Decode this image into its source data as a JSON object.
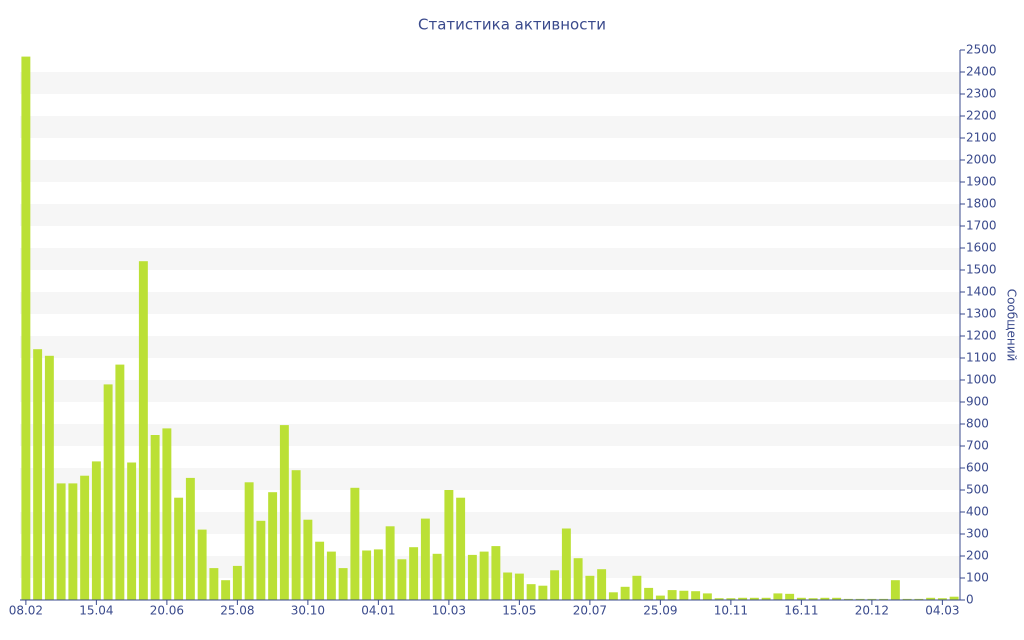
{
  "chart_data": {
    "type": "bar",
    "title": "Статистика активности",
    "y_label": "Сообщений",
    "categories": [
      "08.02",
      null,
      null,
      null,
      null,
      null,
      "15.04",
      null,
      null,
      null,
      null,
      null,
      "20.06",
      null,
      null,
      null,
      null,
      null,
      "25.08",
      null,
      null,
      null,
      null,
      null,
      "30.10",
      null,
      null,
      null,
      null,
      null,
      "04.01",
      null,
      null,
      null,
      null,
      null,
      "10.03",
      null,
      null,
      null,
      null,
      null,
      "15.05",
      null,
      null,
      null,
      null,
      null,
      "20.07",
      null,
      null,
      null,
      null,
      null,
      "25.09",
      null,
      null,
      null,
      null,
      null,
      "10.11",
      null,
      null,
      null,
      null,
      null,
      "16.11",
      null,
      null,
      null,
      null,
      null,
      "20.12",
      null,
      null,
      null,
      null,
      null,
      "04.03",
      null
    ],
    "values": [
      2470,
      1140,
      1110,
      530,
      530,
      565,
      630,
      980,
      1070,
      625,
      1540,
      750,
      780,
      465,
      555,
      320,
      145,
      90,
      155,
      535,
      360,
      490,
      795,
      590,
      365,
      265,
      220,
      145,
      510,
      225,
      230,
      335,
      185,
      240,
      370,
      210,
      500,
      465,
      205,
      220,
      245,
      125,
      120,
      72,
      65,
      135,
      325,
      190,
      110,
      140,
      35,
      60,
      110,
      55,
      20,
      45,
      42,
      40,
      30,
      8,
      8,
      10,
      10,
      10,
      30,
      28,
      10,
      8,
      10,
      10,
      5,
      5,
      5,
      5,
      90,
      5,
      5,
      10,
      8,
      15
    ],
    "color": "#bbe035",
    "ylim": [
      0,
      2500
    ],
    "yticks": [
      0,
      100,
      200,
      300,
      400,
      500,
      600,
      700,
      800,
      900,
      1000,
      1100,
      1200,
      1300,
      1400,
      1500,
      1600,
      1700,
      1800,
      1900,
      2000,
      2100,
      2200,
      2300,
      2400,
      2500
    ],
    "grid": true
  }
}
